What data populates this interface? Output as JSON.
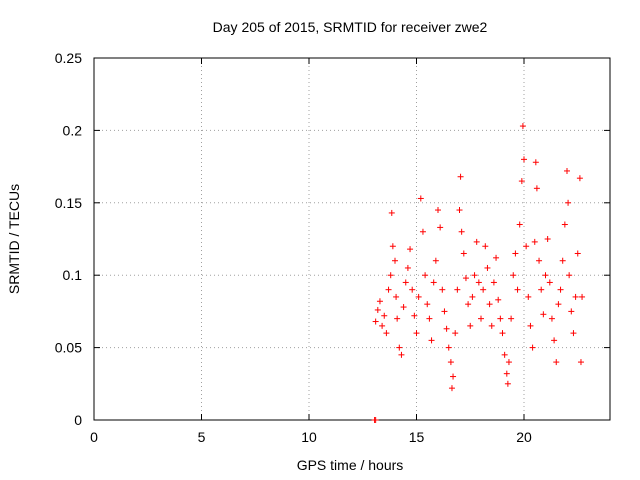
{
  "chart_data": {
    "type": "scatter",
    "title": "Day 205 of 2015, SRMTID for receiver zwe2",
    "xlabel": "GPS time / hours",
    "ylabel": "SRMTID / TECUs",
    "xlim": [
      0,
      24
    ],
    "ylim": [
      0,
      0.25
    ],
    "x_ticks": [
      0,
      5,
      10,
      15,
      20
    ],
    "x_tick_labels": [
      "0",
      "5",
      "10",
      "15",
      "20"
    ],
    "y_ticks": [
      0,
      0.05,
      0.1,
      0.15,
      0.2,
      0.25
    ],
    "y_tick_labels": [
      "0",
      "0.05",
      "0.1",
      "0.15",
      "0.2",
      "0.25"
    ],
    "grid": true,
    "legend": "none",
    "marker": "+",
    "series": [
      {
        "name": "zwe2",
        "color": "#ff0000",
        "points": [
          [
            13.05,
            0.0
          ],
          [
            13.1,
            0.0
          ],
          [
            13.1,
            0.068
          ],
          [
            13.2,
            0.076
          ],
          [
            13.3,
            0.082
          ],
          [
            13.4,
            0.065
          ],
          [
            13.5,
            0.072
          ],
          [
            13.6,
            0.06
          ],
          [
            13.7,
            0.09
          ],
          [
            13.8,
            0.1
          ],
          [
            13.85,
            0.143
          ],
          [
            13.9,
            0.12
          ],
          [
            14.0,
            0.11
          ],
          [
            14.05,
            0.085
          ],
          [
            14.1,
            0.07
          ],
          [
            14.2,
            0.05
          ],
          [
            14.3,
            0.045
          ],
          [
            14.4,
            0.078
          ],
          [
            14.5,
            0.095
          ],
          [
            14.6,
            0.105
          ],
          [
            14.7,
            0.118
          ],
          [
            14.8,
            0.09
          ],
          [
            14.9,
            0.072
          ],
          [
            15.0,
            0.06
          ],
          [
            15.1,
            0.085
          ],
          [
            15.2,
            0.153
          ],
          [
            15.3,
            0.13
          ],
          [
            15.4,
            0.1
          ],
          [
            15.5,
            0.08
          ],
          [
            15.6,
            0.07
          ],
          [
            15.7,
            0.055
          ],
          [
            15.8,
            0.095
          ],
          [
            15.9,
            0.11
          ],
          [
            16.0,
            0.145
          ],
          [
            16.1,
            0.133
          ],
          [
            16.2,
            0.09
          ],
          [
            16.3,
            0.075
          ],
          [
            16.4,
            0.063
          ],
          [
            16.5,
            0.05
          ],
          [
            16.6,
            0.04
          ],
          [
            16.65,
            0.022
          ],
          [
            16.7,
            0.03
          ],
          [
            16.8,
            0.06
          ],
          [
            16.9,
            0.09
          ],
          [
            17.0,
            0.145
          ],
          [
            17.05,
            0.168
          ],
          [
            17.1,
            0.13
          ],
          [
            17.2,
            0.115
          ],
          [
            17.3,
            0.098
          ],
          [
            17.4,
            0.08
          ],
          [
            17.5,
            0.065
          ],
          [
            17.6,
            0.085
          ],
          [
            17.7,
            0.1
          ],
          [
            17.8,
            0.123
          ],
          [
            17.9,
            0.095
          ],
          [
            18.0,
            0.07
          ],
          [
            18.1,
            0.09
          ],
          [
            18.2,
            0.12
          ],
          [
            18.3,
            0.105
          ],
          [
            18.4,
            0.08
          ],
          [
            18.5,
            0.065
          ],
          [
            18.6,
            0.095
          ],
          [
            18.7,
            0.112
          ],
          [
            18.8,
            0.083
          ],
          [
            18.9,
            0.07
          ],
          [
            19.0,
            0.06
          ],
          [
            19.1,
            0.045
          ],
          [
            19.2,
            0.032
          ],
          [
            19.25,
            0.025
          ],
          [
            19.3,
            0.04
          ],
          [
            19.4,
            0.07
          ],
          [
            19.5,
            0.1
          ],
          [
            19.6,
            0.115
          ],
          [
            19.7,
            0.09
          ],
          [
            19.8,
            0.135
          ],
          [
            19.9,
            0.165
          ],
          [
            19.95,
            0.203
          ],
          [
            20.0,
            0.18
          ],
          [
            20.1,
            0.12
          ],
          [
            20.2,
            0.085
          ],
          [
            20.3,
            0.065
          ],
          [
            20.4,
            0.05
          ],
          [
            20.5,
            0.123
          ],
          [
            20.55,
            0.178
          ],
          [
            20.6,
            0.16
          ],
          [
            20.7,
            0.11
          ],
          [
            20.8,
            0.09
          ],
          [
            20.9,
            0.073
          ],
          [
            21.0,
            0.1
          ],
          [
            21.1,
            0.125
          ],
          [
            21.2,
            0.095
          ],
          [
            21.3,
            0.07
          ],
          [
            21.4,
            0.055
          ],
          [
            21.5,
            0.04
          ],
          [
            21.6,
            0.08
          ],
          [
            21.7,
            0.09
          ],
          [
            21.8,
            0.11
          ],
          [
            21.9,
            0.135
          ],
          [
            22.0,
            0.172
          ],
          [
            22.05,
            0.15
          ],
          [
            22.1,
            0.1
          ],
          [
            22.2,
            0.075
          ],
          [
            22.3,
            0.06
          ],
          [
            22.4,
            0.085
          ],
          [
            22.5,
            0.115
          ],
          [
            22.6,
            0.167
          ],
          [
            22.65,
            0.04
          ],
          [
            22.7,
            0.085
          ]
        ]
      }
    ]
  }
}
